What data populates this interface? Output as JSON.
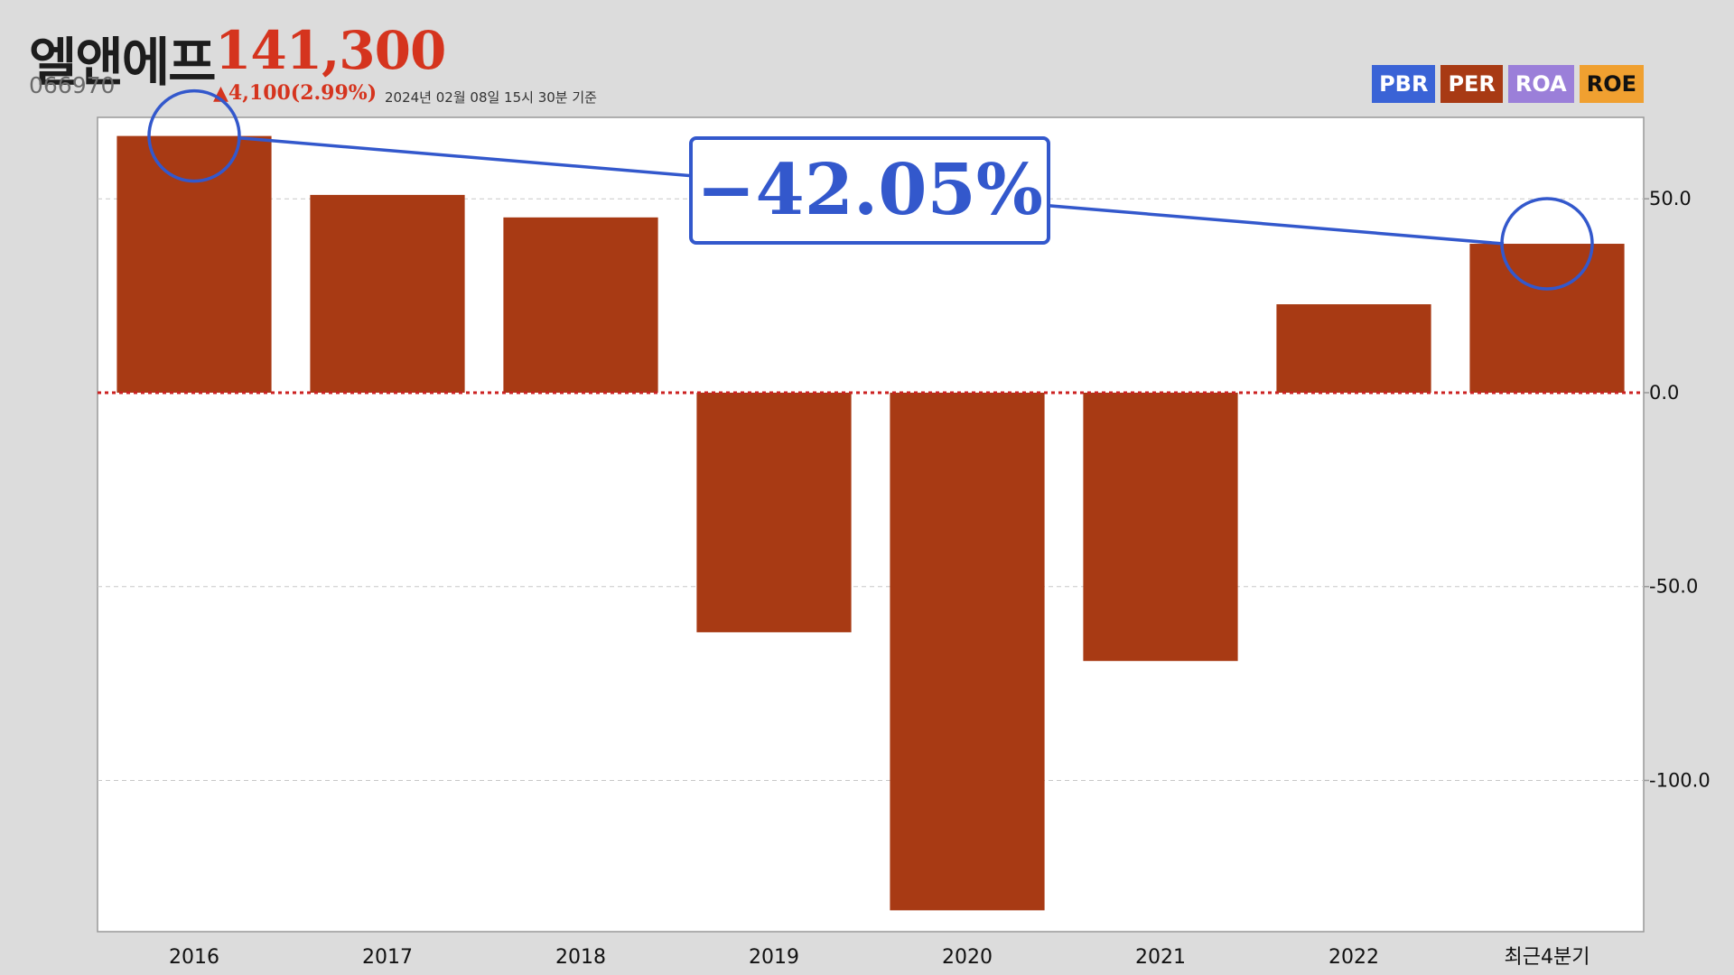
{
  "header": {
    "name": "엘앤에프",
    "price": "141,300",
    "code": "066970",
    "change": "▲4,100(2.99%)",
    "timestamp": "2024년 02월 08일 15시 30분 기준"
  },
  "legend": [
    {
      "label": "PBR",
      "color": "#3a63d6"
    },
    {
      "label": "PER",
      "color": "#a83a14"
    },
    {
      "label": "ROA",
      "color": "#9b7fd9"
    },
    {
      "label": "ROE",
      "color": "#f0a030"
    }
  ],
  "annotation": {
    "text": "−42.05%",
    "color": "#3358cc",
    "from_category": "2016",
    "to_category": "최근4분기"
  },
  "chart_data": {
    "type": "bar",
    "categories": [
      "2016",
      "2017",
      "2018",
      "2019",
      "2020",
      "2021",
      "2022",
      "최근4분기"
    ],
    "series": [
      {
        "values": [
          66.2,
          51.0,
          45.2,
          -61.8,
          -133.5,
          -69.2,
          22.8,
          38.4
        ],
        "color": "#a83a14"
      }
    ],
    "ylim": [
      -139,
      71
    ],
    "yticks": [
      50,
      0,
      -50,
      -100
    ],
    "ytick_labels": [
      "50.0",
      "0.0",
      "-50.0",
      "-100.0"
    ],
    "y_axis_side": "right",
    "grid": true,
    "zero_line_color": "#cc2222"
  }
}
